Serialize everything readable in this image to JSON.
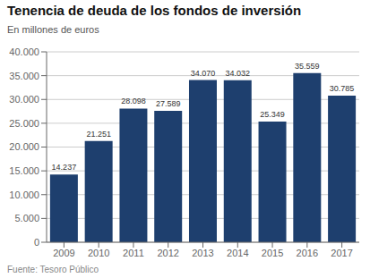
{
  "chart_data": {
    "type": "bar",
    "title": "Tenencia de deuda de los fondos de inversión",
    "subtitle": "En millones de euros",
    "source": "Fuente: Tesoro Público",
    "categories": [
      "2009",
      "2010",
      "2011",
      "2012",
      "2013",
      "2014",
      "2015",
      "2016",
      "2017"
    ],
    "values": [
      14237,
      21251,
      28098,
      27589,
      34070,
      34032,
      25349,
      35559,
      30785
    ],
    "value_labels": [
      "14.237",
      "21.251",
      "28.098",
      "27.589",
      "34.070",
      "34.032",
      "25.349",
      "35.559",
      "30.785"
    ],
    "data_labels": true,
    "color": "#1e3f6e",
    "ylim": [
      0,
      40000
    ],
    "yticks": [
      0,
      {
        "value": 5000,
        "label": "5.000"
      },
      {
        "value": 10000,
        "label": "10.000"
      },
      {
        "value": 15000,
        "label": "15.000"
      },
      {
        "value": 20000,
        "label": "20.000"
      },
      {
        "value": 25000,
        "label": "25.000"
      },
      {
        "value": 30000,
        "label": "30.000"
      },
      {
        "value": 35000,
        "label": "35.000"
      },
      {
        "value": 40000,
        "label": "40.000"
      }
    ],
    "grid": true
  }
}
